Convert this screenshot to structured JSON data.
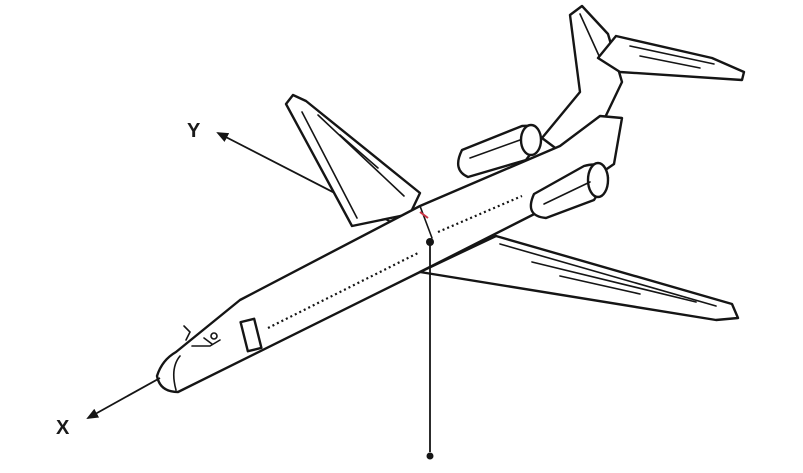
{
  "diagram": {
    "axes": {
      "x_label": "X",
      "y_label": "Y"
    },
    "colors": {
      "line": "#151515",
      "background": "#ffffff",
      "origin_mark": "#cc3344"
    }
  }
}
